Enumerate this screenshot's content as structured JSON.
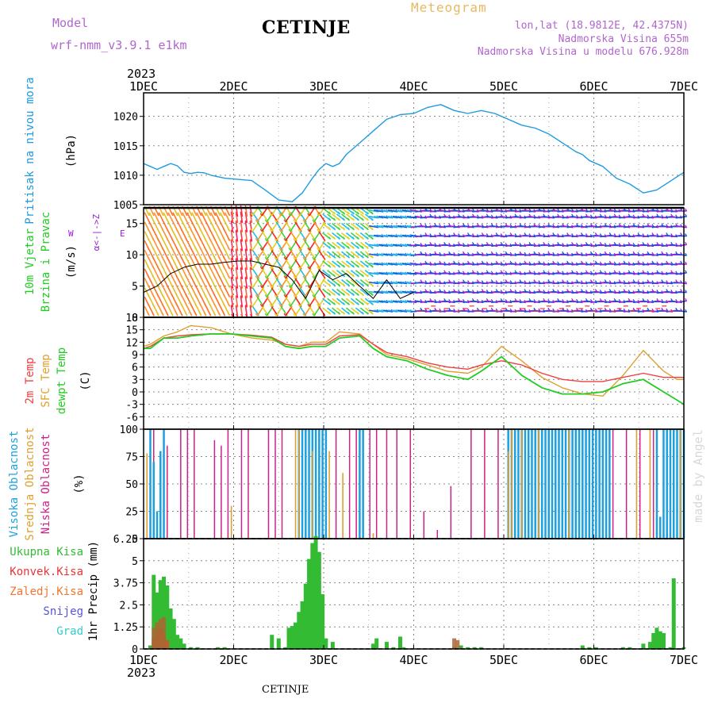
{
  "header": {
    "model_label": "Model",
    "model_name": "wrf-nmm_v3.9.1 e1km",
    "location": "CETINJE",
    "meteogram": "Meteogram",
    "lonlat": "lon,lat (18.9812E, 42.4375N)",
    "elevation": "Nadmorska Visina 655m",
    "model_elevation": "Nadmorska Visina u modelu 676.928m",
    "year_top": "2023",
    "year_bottom": "2023",
    "footer_location": "CETINJE",
    "credit": "made by Angel"
  },
  "colors": {
    "pressure": "#1e9be0",
    "wind_purple": "#9a1fd6",
    "wind_blue": "#1550e0",
    "t2m": "#f04040",
    "sfc": "#e0a030",
    "dew": "#22cc22",
    "high_cloud": "#1ca0e0",
    "mid_cloud": "#e0a030",
    "low_cloud": "#cc2288",
    "precip_total": "#33bb33",
    "precip_conv": "#ee3333",
    "precip_frozen": "#ee7733",
    "precip_snow": "#5555dd",
    "precip_hail": "#33cccc"
  },
  "chart_data": [
    {
      "type": "line",
      "ylabel_outer": "Pritisak na nivou mora",
      "ylabel_inner": "(hPa)",
      "x_ticks": [
        "1DEC",
        "2DEC",
        "3DEC",
        "4DEC",
        "5DEC",
        "6DEC",
        "7DEC"
      ],
      "ylim": [
        1005,
        1024
      ],
      "y_ticks": [
        1005,
        1010,
        1015,
        1020
      ],
      "grid": true,
      "series": [
        {
          "x": [
            0,
            0.1,
            0.2,
            0.3,
            0.4,
            0.5,
            0.6,
            0.7,
            0.8,
            0.9,
            1.0,
            1.2,
            1.4,
            1.6,
            1.8,
            2.0,
            2.2,
            2.35,
            2.5,
            2.6,
            2.7,
            2.8,
            2.9,
            3.0,
            3.2,
            3.4,
            3.6,
            3.8,
            4.0,
            4.2,
            4.4,
            4.6,
            4.8,
            5.0,
            5.2,
            5.4,
            5.6,
            5.8,
            6.0,
            6.2,
            6.4,
            6.5,
            6.6,
            6.8,
            7.0,
            7.2,
            7.4,
            7.6,
            7.8,
            8.0
          ],
          "values": [
            1012,
            1011.5,
            1011,
            1011.5,
            1012,
            1011.6,
            1010.5,
            1010.3,
            1010.5,
            1010.4,
            1010,
            1009.5,
            1009.3,
            1009.1,
            1007.5,
            1005.8,
            1005.5,
            1007,
            1009.5,
            1011,
            1012,
            1011.5,
            1012,
            1013.5,
            1015.5,
            1017.5,
            1019.5,
            1020.3,
            1020.5,
            1021.5,
            1022,
            1021,
            1020.5,
            1021,
            1020.5,
            1019.5,
            1018.5,
            1018,
            1017,
            1015.5,
            1014,
            1013.5,
            1012.5,
            1011.5,
            1009.5,
            1008.5,
            1007,
            1007.5,
            1009,
            1010.5
          ]
        }
      ]
    },
    {
      "type": "line",
      "ylabel_outer": "10m Vjetar",
      "ylabel_outer2": "Brzina i Pravac",
      "ylabel_inner": "(m/s)",
      "compass_ns": "α<-|->Z",
      "compass_w": "W",
      "compass_e": "E",
      "ylim": [
        0,
        17.5
      ],
      "y_ticks": [
        0,
        5,
        10,
        15
      ],
      "grid": true,
      "series": [
        {
          "x": [
            0,
            0.2,
            0.4,
            0.6,
            0.8,
            1.0,
            1.2,
            1.4,
            1.6,
            1.8,
            2.0,
            2.2,
            2.4,
            2.6,
            2.8,
            3.0,
            3.2,
            3.4,
            3.6,
            3.8,
            4.0
          ],
          "values": [
            4,
            5,
            7,
            8,
            8.5,
            8.5,
            8.8,
            9,
            9,
            8.5,
            8,
            6,
            3,
            7.5,
            6,
            7,
            5,
            3,
            6,
            3,
            4
          ]
        }
      ]
    },
    {
      "type": "line",
      "ylabel_outer": "2m Temp",
      "ylabel_outer2": "SFC Temp",
      "ylabel_outer3": "dewpt Temp",
      "ylabel_inner": "(C)",
      "ylim": [
        -9,
        18
      ],
      "y_ticks": [
        -6,
        -3,
        0,
        3,
        6,
        9,
        12,
        15,
        18
      ],
      "grid": true,
      "series": [
        {
          "name": "2m Temp",
          "x": [
            0,
            0.1,
            0.3,
            0.5,
            0.7,
            1.0,
            1.3,
            1.6,
            1.9,
            2.1,
            2.3,
            2.5,
            2.7,
            2.9,
            3.2,
            3.4,
            3.6,
            3.9,
            4.2,
            4.5,
            4.8,
            5.0,
            5.3,
            5.6,
            5.9,
            6.2,
            6.5,
            6.8,
            7.1,
            7.4,
            7.7,
            7.9,
            8.0
          ],
          "values": [
            10.5,
            11,
            13,
            13.5,
            13.8,
            14,
            14,
            13.7,
            13.2,
            11.5,
            11,
            11.5,
            11.5,
            13.5,
            13.8,
            11.5,
            9.5,
            8.5,
            7,
            6,
            5.5,
            6.5,
            7.5,
            6.5,
            4.5,
            3,
            2.5,
            2.5,
            3.5,
            4.5,
            3.5,
            3.5,
            3.5
          ]
        },
        {
          "name": "SFC Temp",
          "x": [
            0,
            0.1,
            0.3,
            0.5,
            0.7,
            1.0,
            1.3,
            1.6,
            1.9,
            2.1,
            2.3,
            2.5,
            2.7,
            2.9,
            3.2,
            3.4,
            3.6,
            3.9,
            4.2,
            4.5,
            4.8,
            5.0,
            5.3,
            5.6,
            5.9,
            6.2,
            6.5,
            6.8,
            7.1,
            7.4,
            7.7,
            7.9,
            8.0
          ],
          "values": [
            11,
            11.5,
            13.5,
            14.5,
            16,
            15.5,
            14,
            13,
            12.5,
            11.5,
            11,
            12,
            12,
            14.5,
            14,
            11.5,
            9,
            8,
            6.5,
            5,
            4.5,
            6,
            11,
            7.5,
            3.5,
            1,
            -0.5,
            -1,
            4,
            10,
            5,
            3,
            3
          ]
        },
        {
          "name": "dewpt Temp",
          "x": [
            0,
            0.1,
            0.3,
            0.5,
            0.7,
            1.0,
            1.3,
            1.6,
            1.9,
            2.1,
            2.3,
            2.5,
            2.7,
            2.9,
            3.2,
            3.4,
            3.6,
            3.9,
            4.2,
            4.5,
            4.8,
            5.0,
            5.3,
            5.6,
            5.9,
            6.2,
            6.5,
            6.8,
            7.1,
            7.4,
            7.7,
            7.9,
            8.0
          ],
          "values": [
            10.5,
            10.5,
            13,
            13,
            13.5,
            14,
            14,
            13.5,
            13,
            11,
            10.5,
            11,
            11,
            13,
            13.5,
            10.5,
            8.5,
            7.5,
            5.5,
            4,
            3,
            5,
            8.5,
            4,
            1,
            -0.5,
            -0.5,
            0,
            2,
            3,
            0,
            -2,
            -3
          ]
        }
      ]
    },
    {
      "type": "bar",
      "ylabel_outer": "Visoka Oblacnost",
      "ylabel_outer2": "Srednja Oblacnost",
      "ylabel_outer3": "Niska Oblacnost",
      "ylabel_inner": "(%)",
      "ylim": [
        0,
        100
      ],
      "y_ticks": [
        0,
        25,
        50,
        75,
        100
      ],
      "grid": true
    },
    {
      "type": "bar",
      "ylabel_outer": "1hr Precip (mm)",
      "legend": [
        "Ukupna Kisa",
        "Konvek.Kisa",
        "Zaledj.Kisa",
        "Snijeg",
        "Grad"
      ],
      "ylim": [
        0,
        6.25
      ],
      "y_ticks": [
        0,
        1.25,
        2.5,
        3.75,
        5,
        6.25
      ],
      "x_ticks": [
        "1DEC",
        "2DEC",
        "3DEC",
        "4DEC",
        "5DEC",
        "6DEC",
        "7DEC"
      ],
      "grid": true,
      "series": [
        {
          "name": "Ukupna Kisa",
          "x": [
            0.1,
            0.15,
            0.2,
            0.25,
            0.3,
            0.35,
            0.4,
            0.45,
            0.5,
            0.55,
            0.6,
            0.7,
            0.8,
            1.1,
            1.2,
            1.9,
            2.0,
            2.1,
            2.15,
            2.2,
            2.25,
            2.3,
            2.35,
            2.4,
            2.45,
            2.5,
            2.55,
            2.6,
            2.65,
            2.7,
            2.8,
            3.4,
            3.45,
            3.6,
            3.7,
            3.8,
            3.85,
            4.6,
            4.7,
            4.8,
            4.9,
            5.0,
            5.4,
            6.5,
            6.6,
            6.7,
            7.1,
            7.2,
            7.4,
            7.5,
            7.55,
            7.6,
            7.65,
            7.7,
            7.8,
            7.85,
            8.0
          ],
          "values": [
            0.2,
            4.2,
            3.2,
            3.9,
            4.1,
            3.6,
            2.3,
            1.7,
            0.8,
            0.6,
            0.3,
            0.1,
            0.1,
            0.1,
            0.1,
            0.8,
            0.6,
            0.1,
            1.2,
            1.3,
            1.5,
            2.1,
            2.7,
            3.7,
            5.1,
            6.0,
            6.4,
            5.5,
            3.1,
            0.6,
            0.4,
            0.3,
            0.6,
            0.4,
            0.1,
            0.7,
            0.1,
            0.1,
            0.2,
            0.1,
            0.1,
            0.1,
            0.05,
            0.2,
            0.1,
            0.1,
            0.1,
            0.1,
            0.3,
            0.4,
            0.9,
            1.2,
            1.0,
            0.9,
            0.1,
            4.0,
            0.1
          ]
        },
        {
          "name": "Konvek.Kisa",
          "x": [
            0.15,
            0.2,
            0.25,
            0.3,
            0.35,
            4.6
          ],
          "values": [
            0.6,
            1.0,
            1.2,
            0.9,
            0.5,
            0.1
          ]
        },
        {
          "name": "Zaledj.Kisa",
          "x": [
            0.15,
            0.2,
            0.25,
            0.3,
            4.6,
            4.65
          ],
          "values": [
            1.2,
            1.5,
            1.7,
            1.8,
            0.6,
            0.5
          ]
        }
      ]
    }
  ]
}
